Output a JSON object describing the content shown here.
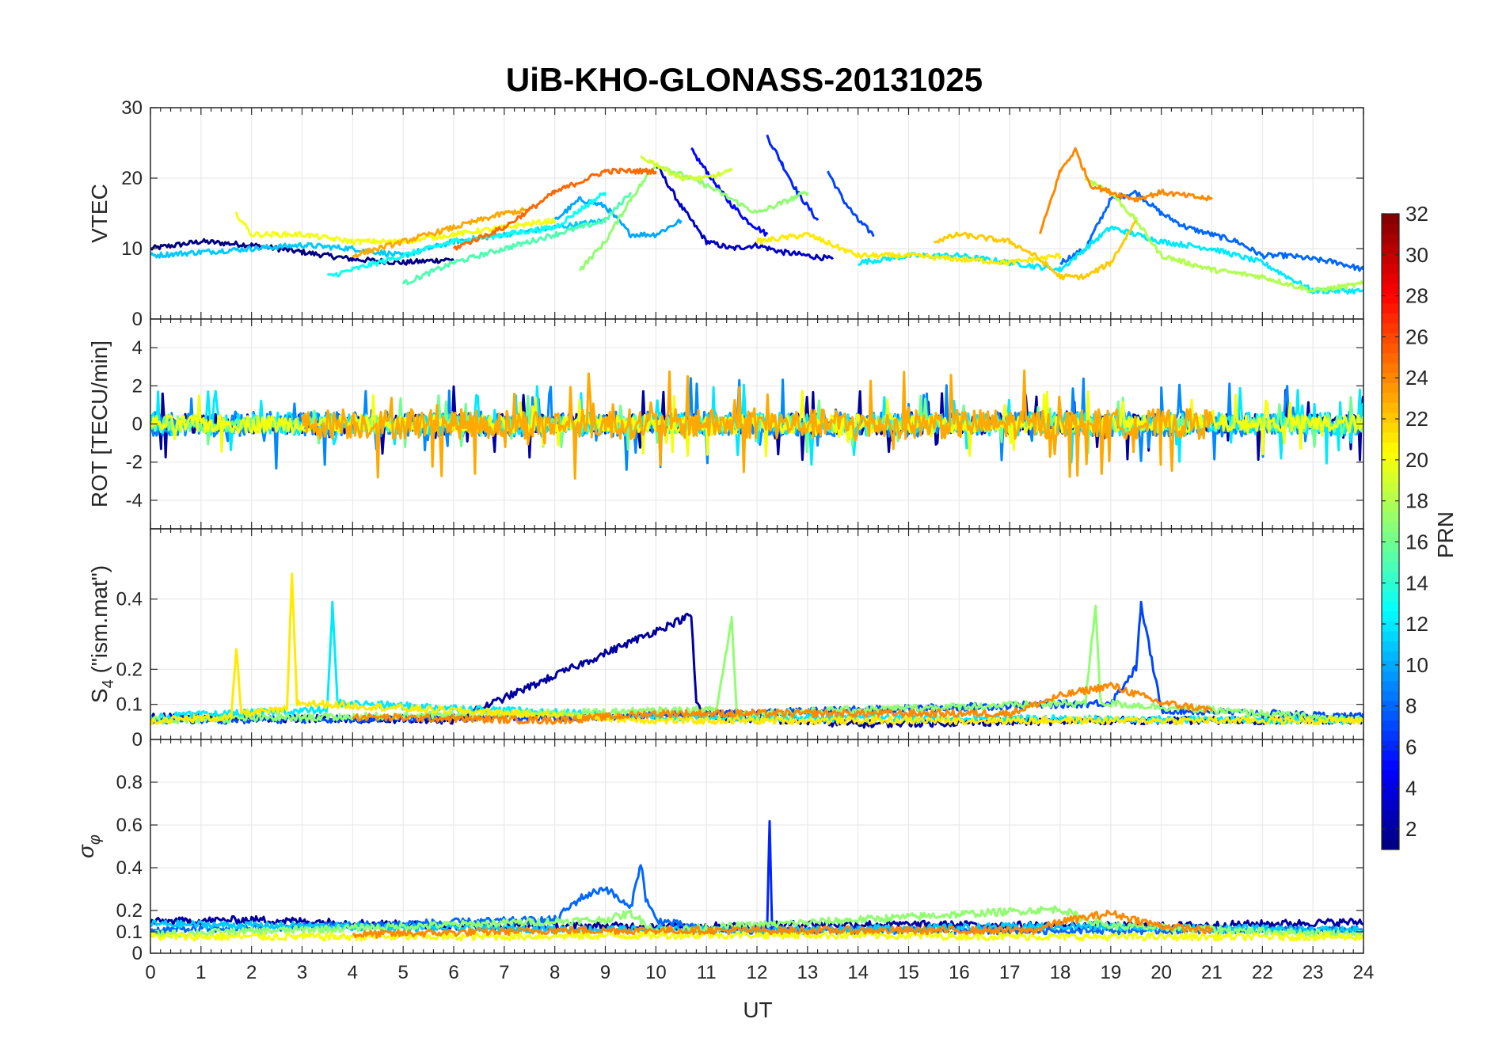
{
  "chart_data": {
    "type": "line",
    "title": "UiB-KHO-GLONASS-20131025",
    "xlabel": "UT",
    "xlim": [
      0,
      24
    ],
    "xticks": [
      0,
      1,
      2,
      3,
      4,
      5,
      6,
      7,
      8,
      9,
      10,
      11,
      12,
      13,
      14,
      15,
      16,
      17,
      18,
      19,
      20,
      21,
      22,
      23,
      24
    ],
    "colorbar": {
      "label": "PRN",
      "range": [
        1,
        32
      ],
      "ticks": [
        2,
        4,
        6,
        8,
        10,
        12,
        14,
        16,
        18,
        20,
        22,
        24,
        26,
        28,
        30,
        32
      ],
      "colormap": "jet"
    },
    "panels": [
      {
        "id": "vtec",
        "ylabel": "VTEC",
        "ylim": [
          0,
          30
        ],
        "yticks": [
          0,
          10,
          20,
          30
        ],
        "series": [
          {
            "prn": 1,
            "x": [
              0,
              1,
              2,
              3,
              4,
              5,
              6
            ],
            "y": [
              10,
              11,
              10.5,
              9.5,
              8.5,
              8,
              8.5
            ]
          },
          {
            "prn": 3,
            "x": [
              10,
              10.5,
              11,
              11.5,
              12,
              12.5,
              13,
              13.5
            ],
            "y": [
              22,
              16,
              11,
              10,
              10.5,
              9.5,
              9,
              8.5
            ]
          },
          {
            "prn": 5,
            "x": [
              10.7,
              11,
              11.4,
              11.8,
              12.2
            ],
            "y": [
              24,
              21,
              17,
              14,
              12
            ]
          },
          {
            "prn": 6,
            "x": [
              12.2,
              12.5,
              12.8,
              13.2
            ],
            "y": [
              26,
              22,
              18,
              14
            ]
          },
          {
            "prn": 7,
            "x": [
              13.4,
              13.7,
              14,
              14.3
            ],
            "y": [
              21,
              17,
              14,
              12
            ]
          },
          {
            "prn": 8,
            "x": [
              18,
              18.5,
              19,
              19.5,
              20,
              20.5,
              21,
              21.5,
              22,
              22.5,
              23,
              23.5,
              24
            ],
            "y": [
              8,
              10,
              17,
              18,
              15,
              13,
              12,
              11,
              9,
              9,
              8.5,
              8,
              7
            ]
          },
          {
            "prn": 10,
            "x": [
              8,
              8.5,
              9,
              9.5,
              10,
              10.5
            ],
            "y": [
              14,
              17,
              16,
              12,
              12,
              14
            ]
          },
          {
            "prn": 11,
            "x": [
              0,
              1,
              2,
              3,
              4,
              5,
              6,
              7,
              8,
              9
            ],
            "y": [
              9,
              9.5,
              10,
              10.5,
              10,
              9,
              11,
              12,
              13,
              14
            ]
          },
          {
            "prn": 12,
            "x": [
              14,
              15,
              16,
              17,
              18,
              19,
              20,
              21,
              22,
              23,
              24
            ],
            "y": [
              8,
              9,
              9,
              8,
              7,
              13,
              11,
              10,
              8,
              4,
              4
            ]
          },
          {
            "prn": 13,
            "x": [
              3.5,
              4,
              5,
              6,
              7,
              8,
              8.6,
              9
            ],
            "y": [
              6,
              7,
              9,
              11,
              12,
              13,
              16,
              18
            ]
          },
          {
            "prn": 15,
            "x": [
              5,
              6,
              7,
              8,
              9,
              9.5
            ],
            "y": [
              5,
              8,
              10,
              12,
              14,
              18
            ]
          },
          {
            "prn": 17,
            "x": [
              8.5,
              9,
              9.5,
              10,
              11,
              12,
              13
            ],
            "y": [
              7,
              11,
              17,
              22,
              19,
              15,
              18
            ]
          },
          {
            "prn": 18,
            "x": [
              18.5,
              19,
              19.5,
              20,
              21,
              22,
              23,
              24
            ],
            "y": [
              20,
              18,
              14,
              9,
              7,
              6,
              4,
              5
            ]
          },
          {
            "prn": 19,
            "x": [
              9.7,
              10,
              10.5,
              11,
              11.5
            ],
            "y": [
              23,
              22,
              20,
              20,
              21
            ]
          },
          {
            "prn": 20,
            "x": [
              1.7,
              2,
              3,
              4,
              5,
              6,
              7,
              8
            ],
            "y": [
              15,
              12,
              12,
              11,
              11,
              12,
              13,
              14
            ]
          },
          {
            "prn": 21,
            "x": [
              12,
              13,
              14,
              15,
              16,
              17,
              18
            ],
            "y": [
              11,
              12,
              9,
              9,
              8.5,
              8,
              9
            ]
          },
          {
            "prn": 22,
            "x": [
              15.5,
              16,
              17,
              17.5,
              18,
              18.5,
              19,
              19.5
            ],
            "y": [
              11,
              12,
              11,
              9,
              6,
              6,
              8,
              14
            ]
          },
          {
            "prn": 23,
            "x": [
              4,
              5,
              6,
              7,
              7.5
            ],
            "y": [
              9,
              11,
              13,
              15,
              15.5
            ]
          },
          {
            "prn": 24,
            "x": [
              17.6,
              18,
              18.3,
              18.6,
              19,
              19.5,
              20,
              21
            ],
            "y": [
              12,
              21,
              24,
              19,
              18,
              17,
              18,
              17
            ]
          },
          {
            "prn": 25,
            "x": [
              6,
              7,
              8,
              9,
              10
            ],
            "y": [
              10,
              13,
              18,
              21,
              21
            ]
          }
        ]
      },
      {
        "id": "rot",
        "ylabel": "ROT [TECU/min]",
        "ylim": [
          -5.5,
          5.5
        ],
        "yticks": [
          -4,
          -2,
          0,
          2,
          4
        ],
        "series": [
          {
            "prn": 2,
            "x": [
              0,
              6,
              9,
              10,
              12,
              15,
              16,
              20,
              24
            ],
            "y": [
              0,
              0,
              0,
              0,
              0,
              0,
              0,
              0,
              0
            ],
            "noise": 0.9
          },
          {
            "prn": 9,
            "x": [
              0,
              6,
              9,
              10,
              12,
              15,
              16,
              20,
              24
            ],
            "y": [
              0,
              0,
              0,
              0,
              0,
              0,
              0,
              0,
              0
            ],
            "noise": 1.1
          },
          {
            "prn": 12,
            "x": [
              0,
              6,
              9,
              10,
              12,
              15,
              16,
              20,
              24
            ],
            "y": [
              0,
              0,
              0,
              0,
              0,
              0,
              0,
              0,
              0
            ],
            "noise": 1.0
          },
          {
            "prn": 16,
            "x": [
              0,
              6,
              9,
              10,
              12,
              15,
              16,
              20,
              24
            ],
            "y": [
              0,
              0,
              0,
              0,
              0,
              0,
              0,
              0,
              0
            ],
            "noise": 0.7
          },
          {
            "prn": 20,
            "x": [
              0,
              6,
              9,
              10,
              12,
              15,
              16,
              20,
              24
            ],
            "y": [
              0,
              0,
              0,
              0,
              0,
              0,
              0,
              0,
              0
            ],
            "noise": 0.8
          },
          {
            "prn": 23,
            "x": [
              3,
              6,
              9,
              10,
              12,
              15,
              16,
              20,
              21
            ],
            "y": [
              0,
              0,
              0,
              0,
              0,
              0,
              0,
              0,
              0
            ],
            "noise": 1.3
          }
        ]
      },
      {
        "id": "s4",
        "ylabel": "S4 (\"ism.mat\")",
        "ylim": [
          0,
          0.6
        ],
        "yticks": [
          0,
          0.1,
          0.2,
          0.4
        ],
        "series": [
          {
            "prn": 2,
            "x": [
              0,
              6,
              10.7,
              10.8,
              11,
              14,
              19,
              24
            ],
            "y": [
              0.06,
              0.05,
              0.35,
              0.1,
              0.06,
              0.04,
              0.05,
              0.05
            ]
          },
          {
            "prn": 7,
            "x": [
              0,
              9,
              19,
              19.5,
              19.6,
              20,
              24
            ],
            "y": [
              0.05,
              0.06,
              0.1,
              0.2,
              0.38,
              0.08,
              0.06
            ]
          },
          {
            "prn": 12,
            "x": [
              0,
              3.5,
              3.6,
              3.7,
              10,
              24
            ],
            "y": [
              0.06,
              0.08,
              0.38,
              0.1,
              0.06,
              0.05
            ]
          },
          {
            "prn": 17,
            "x": [
              0,
              11.2,
              11.5,
              11.6,
              18.5,
              18.7,
              18.8,
              24
            ],
            "y": [
              0.05,
              0.08,
              0.34,
              0.07,
              0.1,
              0.38,
              0.1,
              0.05
            ]
          },
          {
            "prn": 21,
            "x": [
              0,
              1.6,
              1.7,
              1.8,
              2.7,
              2.8,
              2.9,
              10,
              24
            ],
            "y": [
              0.05,
              0.06,
              0.25,
              0.07,
              0.08,
              0.46,
              0.1,
              0.05,
              0.05
            ]
          },
          {
            "prn": 24,
            "x": [
              4,
              8,
              10,
              17,
              18,
              19,
              20,
              21
            ],
            "y": [
              0.06,
              0.05,
              0.07,
              0.07,
              0.12,
              0.15,
              0.1,
              0.08
            ]
          }
        ]
      },
      {
        "id": "sigma",
        "ylabel": "σφ",
        "ylim": [
          0,
          1
        ],
        "yticks": [
          0,
          0.1,
          0.2,
          0.4,
          0.6,
          0.8
        ],
        "series": [
          {
            "prn": 2,
            "x": [
              0,
              2,
              6,
              12,
              13,
              20,
              24
            ],
            "y": [
              0.14,
              0.15,
              0.12,
              0.12,
              0.13,
              0.12,
              0.14
            ]
          },
          {
            "prn": 8,
            "x": [
              0,
              8,
              8.5,
              9,
              9.5,
              9.7,
              9.8,
              10,
              11,
              24
            ],
            "y": [
              0.1,
              0.15,
              0.25,
              0.3,
              0.2,
              0.42,
              0.25,
              0.15,
              0.1,
              0.1
            ]
          },
          {
            "prn": 11,
            "x": [
              0,
              6,
              12,
              18,
              24
            ],
            "y": [
              0.13,
              0.11,
              0.1,
              0.12,
              0.1
            ]
          },
          {
            "prn": 6,
            "x": [
              12.2,
              12.25,
              12.3
            ],
            "y": [
              0.1,
              0.6,
              0.1
            ]
          },
          {
            "prn": 17,
            "x": [
              0,
              9,
              9.5,
              10,
              18,
              18.5,
              19,
              24
            ],
            "y": [
              0.08,
              0.15,
              0.18,
              0.1,
              0.2,
              0.15,
              0.12,
              0.08
            ]
          },
          {
            "prn": 20,
            "x": [
              0,
              6,
              12,
              18,
              24
            ],
            "y": [
              0.07,
              0.07,
              0.08,
              0.07,
              0.07
            ]
          },
          {
            "prn": 24,
            "x": [
              4,
              8,
              10,
              17.5,
              18,
              19,
              20,
              21
            ],
            "y": [
              0.08,
              0.1,
              0.1,
              0.1,
              0.14,
              0.18,
              0.12,
              0.1
            ]
          }
        ]
      }
    ]
  }
}
